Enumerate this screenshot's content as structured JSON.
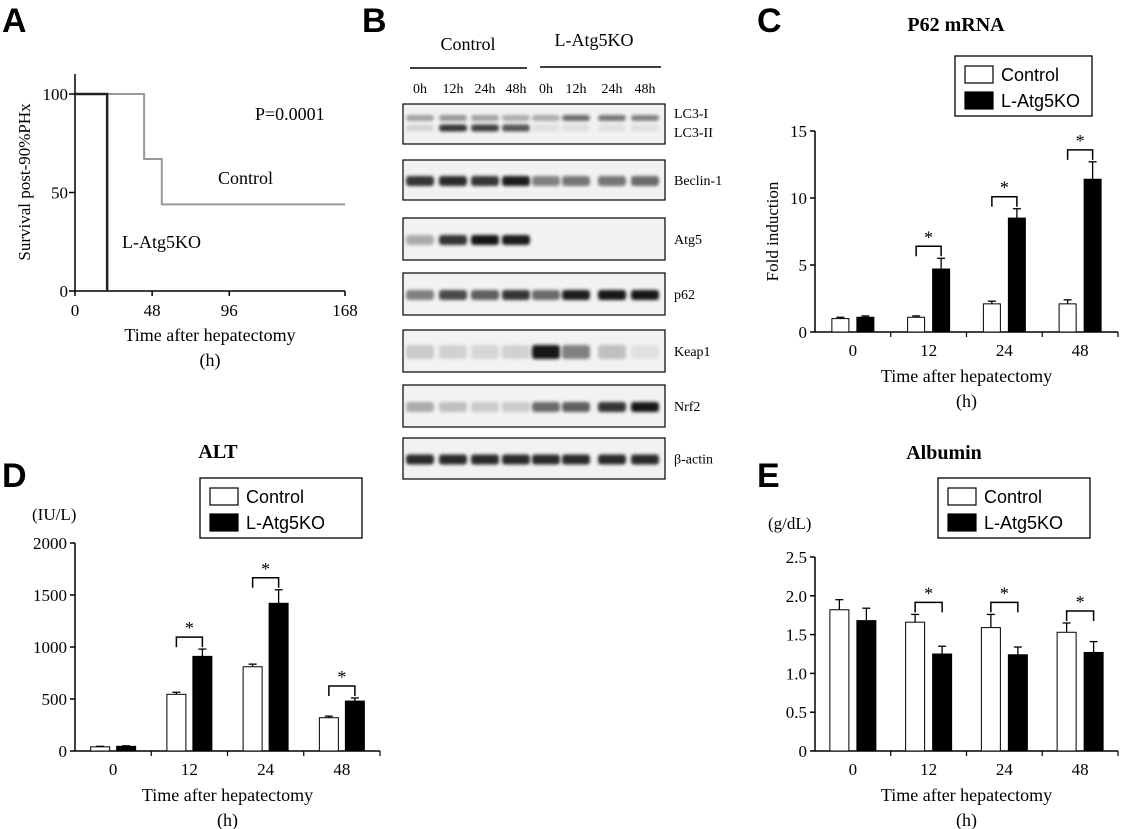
{
  "panel_letters": [
    "A",
    "B",
    "C",
    "D",
    "E"
  ],
  "blot": {
    "group_labels": [
      "Control",
      "L-Atg5KO"
    ],
    "lane_labels": [
      "0h",
      "12h",
      "24h",
      "48h",
      "0h",
      "12h",
      "24h",
      "48h"
    ],
    "rows": [
      {
        "label": "LC3-I",
        "label2": "LC3-II",
        "intensities": [
          0.35,
          0.4,
          0.35,
          0.3,
          0.3,
          0.6,
          0.55,
          0.5
        ],
        "intensities2": [
          0.1,
          0.85,
          0.8,
          0.7,
          0.05,
          0.05,
          0.05,
          0.05
        ]
      },
      {
        "label": "Beclin-1",
        "intensities": [
          0.85,
          0.9,
          0.85,
          0.95,
          0.5,
          0.55,
          0.55,
          0.6
        ]
      },
      {
        "label": "Atg5",
        "intensities": [
          0.3,
          0.85,
          1.0,
          0.95,
          0.0,
          0.0,
          0.0,
          0.0
        ]
      },
      {
        "label": "p62",
        "intensities": [
          0.5,
          0.75,
          0.65,
          0.85,
          0.6,
          0.95,
          1.0,
          1.0
        ]
      },
      {
        "label": "Keap1",
        "intensities": [
          0.15,
          0.12,
          0.1,
          0.12,
          1.0,
          0.5,
          0.2,
          0.05
        ]
      },
      {
        "label": "Nrf2",
        "intensities": [
          0.3,
          0.2,
          0.15,
          0.15,
          0.6,
          0.65,
          0.85,
          1.0
        ]
      },
      {
        "label": "β-actin",
        "intensities": [
          0.9,
          0.9,
          0.9,
          0.9,
          0.9,
          0.9,
          0.9,
          0.9
        ]
      }
    ]
  },
  "chart_data": [
    {
      "panel": "A",
      "type": "line",
      "title": "",
      "xlabel": "Time after hepatectomy",
      "xunit": "(h)",
      "ylabel": "Survival post-90%PHx",
      "xlim": [
        0,
        168
      ],
      "ylim": [
        0,
        100
      ],
      "xticks": [
        0,
        48,
        96,
        168
      ],
      "yticks": [
        0,
        50,
        100
      ],
      "annotation": "P=0.0001",
      "series": [
        {
          "name": "Control",
          "color": "#999999",
          "x": [
            0,
            32,
            32,
            43,
            43,
            54,
            54,
            168
          ],
          "y": [
            100,
            100,
            100,
            100,
            67,
            67,
            44,
            44
          ]
        },
        {
          "name": "L-Atg5KO",
          "color": "#222222",
          "x": [
            0,
            20,
            20
          ],
          "y": [
            100,
            100,
            0
          ]
        }
      ]
    },
    {
      "panel": "C",
      "type": "bar",
      "title": "P62 mRNA",
      "xlabel": "Time after hepatectomy",
      "xunit": "(h)",
      "ylabel": "Fold induction",
      "unit_label": "",
      "categories": [
        "0",
        "12",
        "24",
        "48"
      ],
      "ylim": [
        0,
        15
      ],
      "yticks": [
        "0",
        "5",
        "10",
        "15"
      ],
      "legend_position": "top-right",
      "legend": [
        "Control",
        "L-Atg5KO"
      ],
      "series": [
        {
          "name": "Control",
          "values": [
            1.0,
            1.1,
            2.1,
            2.1
          ],
          "errors": [
            0.1,
            0.1,
            0.2,
            0.3
          ]
        },
        {
          "name": "L-Atg5KO",
          "values": [
            1.1,
            4.7,
            8.5,
            11.4
          ],
          "errors": [
            0.1,
            0.8,
            0.7,
            1.3
          ]
        }
      ],
      "significance": [
        false,
        true,
        true,
        true
      ],
      "sig_marker": "*"
    },
    {
      "panel": "D",
      "type": "bar",
      "title": "ALT",
      "xlabel": "Time after hepatectomy",
      "xunit": "(h)",
      "ylabel": "",
      "unit_label": "(IU/L)",
      "categories": [
        "0",
        "12",
        "24",
        "48"
      ],
      "ylim": [
        0,
        2000
      ],
      "yticks": [
        "0",
        "500",
        "1000",
        "1500",
        "2000"
      ],
      "legend_position": "top-right",
      "legend": [
        "Control",
        "L-Atg5KO"
      ],
      "series": [
        {
          "name": "Control",
          "values": [
            40,
            545,
            810,
            320
          ],
          "errors": [
            5,
            20,
            25,
            15
          ]
        },
        {
          "name": "L-Atg5KO",
          "values": [
            45,
            910,
            1420,
            480
          ],
          "errors": [
            5,
            70,
            130,
            30
          ]
        }
      ],
      "significance": [
        false,
        true,
        true,
        true
      ],
      "sig_marker": "*"
    },
    {
      "panel": "E",
      "type": "bar",
      "title": "Albumin",
      "xlabel": "Time after hepatectomy",
      "xunit": "(h)",
      "ylabel": "",
      "unit_label": "(g/dL)",
      "categories": [
        "0",
        "12",
        "24",
        "48"
      ],
      "ylim": [
        0,
        2.5
      ],
      "yticks": [
        "0",
        "0.5",
        "1.0",
        "1.5",
        "2.0",
        "2.5"
      ],
      "legend_position": "top-right",
      "legend": [
        "Control",
        "L-Atg5KO"
      ],
      "series": [
        {
          "name": "Control",
          "values": [
            1.82,
            1.66,
            1.59,
            1.53
          ],
          "errors": [
            0.13,
            0.1,
            0.17,
            0.12
          ]
        },
        {
          "name": "L-Atg5KO",
          "values": [
            1.68,
            1.25,
            1.24,
            1.27
          ],
          "errors": [
            0.16,
            0.1,
            0.1,
            0.14
          ]
        }
      ],
      "significance": [
        false,
        true,
        true,
        true
      ],
      "sig_marker": "*"
    }
  ]
}
